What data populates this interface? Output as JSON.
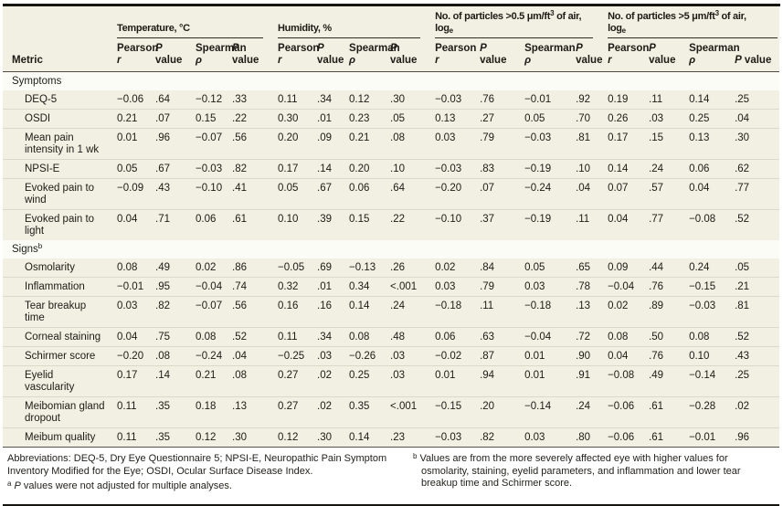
{
  "colors": {
    "table_background": "#f2f0e3",
    "section_background": "#fcfcf7",
    "separator": "#ddd9c9",
    "rule_color": "#17150f"
  },
  "header": {
    "metric_label": "Metric",
    "groups": [
      {
        "name": "temperature",
        "lines": [
          [
            {
              "t": "Temperature, °C"
            }
          ]
        ]
      },
      {
        "name": "humidity",
        "lines": [
          [
            {
              "t": "Humidity, %"
            }
          ]
        ]
      },
      {
        "name": "particles-0-5",
        "lines": [
          [
            {
              "t": "No. of particles >0.5 μm/ft"
            },
            {
              "t": "3",
              "sup": 1
            },
            {
              "t": " of air,"
            }
          ],
          [
            {
              "t": "log"
            },
            {
              "t": "e",
              "sub": 1
            }
          ]
        ]
      },
      {
        "name": "particles-5",
        "lines": [
          [
            {
              "t": "No. of particles >5 μm/ft"
            },
            {
              "t": "3",
              "sup": 1
            },
            {
              "t": " of air,"
            }
          ],
          [
            {
              "t": "log"
            },
            {
              "t": "e",
              "sub": 1
            }
          ]
        ]
      }
    ],
    "subcolumns": [
      [
        {
          "top": [
            {
              "t": "Pearson"
            }
          ],
          "bottom": [
            {
              "t": "r",
              "i": 1
            }
          ]
        },
        {
          "top": [
            {
              "t": "P",
              "i": 1
            }
          ],
          "bottom": [
            {
              "t": "value"
            }
          ]
        },
        {
          "top": [
            {
              "t": "Spearman"
            }
          ],
          "bottom": [
            {
              "t": "ρ",
              "i": 1
            }
          ]
        },
        {
          "top": [
            {
              "t": "P",
              "i": 1
            }
          ],
          "bottom": [
            {
              "t": "value"
            }
          ]
        }
      ],
      [
        {
          "top": [
            {
              "t": "Pearson"
            }
          ],
          "bottom": [
            {
              "t": "r",
              "i": 1
            }
          ]
        },
        {
          "top": [
            {
              "t": "P",
              "i": 1
            }
          ],
          "bottom": [
            {
              "t": "value"
            }
          ]
        },
        {
          "top": [
            {
              "t": "Spearman"
            }
          ],
          "bottom": [
            {
              "t": "ρ",
              "i": 1
            }
          ]
        },
        {
          "top": [
            {
              "t": "P",
              "i": 1
            }
          ],
          "bottom": [
            {
              "t": "value"
            }
          ]
        }
      ],
      [
        {
          "top": [
            {
              "t": "Pearson"
            }
          ],
          "bottom": [
            {
              "t": "r",
              "i": 1
            }
          ]
        },
        {
          "top": [
            {
              "t": "P",
              "i": 1
            }
          ],
          "bottom": [
            {
              "t": "value"
            }
          ]
        },
        {
          "top": [
            {
              "t": "Spearman"
            }
          ],
          "bottom": [
            {
              "t": "ρ",
              "i": 1
            }
          ]
        },
        {
          "top": [
            {
              "t": "P",
              "i": 1
            }
          ],
          "bottom": [
            {
              "t": "value"
            }
          ]
        }
      ],
      [
        {
          "top": [
            {
              "t": "Pearson"
            }
          ],
          "bottom": [
            {
              "t": "r",
              "i": 1
            }
          ]
        },
        {
          "top": [
            {
              "t": "P",
              "i": 1
            }
          ],
          "bottom": [
            {
              "t": "value"
            }
          ]
        },
        {
          "top": [
            {
              "t": "Spearman"
            }
          ],
          "bottom": [
            {
              "t": "ρ",
              "i": 1
            }
          ]
        },
        {
          "top": [],
          "bottom": [
            {
              "t": "P",
              "i": 1
            },
            {
              "t": " value"
            }
          ]
        }
      ]
    ]
  },
  "table": {
    "sections": [
      {
        "label": "Symptoms",
        "marker": "",
        "rows": [
          {
            "metric": "DEQ-5",
            "values": [
              "−0.06",
              ".64",
              "−0.12",
              ".33",
              "0.11",
              ".34",
              "0.12",
              ".30",
              "−0.03",
              ".76",
              "−0.01",
              ".92",
              "0.19",
              ".11",
              "0.14",
              ".25"
            ]
          },
          {
            "metric": "OSDI",
            "values": [
              "0.21",
              ".07",
              "0.15",
              ".22",
              "0.30",
              ".01",
              "0.23",
              ".05",
              "0.13",
              ".27",
              "0.05",
              ".70",
              "0.26",
              ".03",
              "0.25",
              ".04"
            ]
          },
          {
            "metric": "Mean pain intensity in 1 wk",
            "values": [
              "0.01",
              ".96",
              "−0.07",
              ".56",
              "0.20",
              ".09",
              "0.21",
              ".08",
              "0.03",
              ".79",
              "−0.03",
              ".81",
              "0.17",
              ".15",
              "0.13",
              ".30"
            ]
          },
          {
            "metric": "NPSI-E",
            "values": [
              "0.05",
              ".67",
              "−0.03",
              ".82",
              "0.17",
              ".14",
              "0.20",
              ".10",
              "−0.03",
              ".83",
              "−0.19",
              ".10",
              "0.14",
              ".24",
              "0.06",
              ".62"
            ]
          },
          {
            "metric": "Evoked pain to wind",
            "values": [
              "−0.09",
              ".43",
              "−0.10",
              ".41",
              "0.05",
              ".67",
              "0.06",
              ".64",
              "−0.20",
              ".07",
              "−0.24",
              ".04",
              "0.07",
              ".57",
              "0.04",
              ".77"
            ]
          },
          {
            "metric": "Evoked pain to light",
            "values": [
              "0.04",
              ".71",
              "0.06",
              ".61",
              "0.10",
              ".39",
              "0.15",
              ".22",
              "−0.10",
              ".37",
              "−0.19",
              ".11",
              "0.04",
              ".77",
              "−0.08",
              ".52"
            ]
          }
        ]
      },
      {
        "label": "Signs",
        "marker": "b",
        "rows": [
          {
            "metric": "Osmolarity",
            "values": [
              "0.08",
              ".49",
              "0.02",
              ".86",
              "−0.05",
              ".69",
              "−0.13",
              ".26",
              "0.02",
              ".84",
              "0.05",
              ".65",
              "0.09",
              ".44",
              "0.24",
              ".05"
            ]
          },
          {
            "metric": "Inflammation",
            "values": [
              "−0.01",
              ".95",
              "−0.04",
              ".74",
              "0.32",
              ".01",
              "0.34",
              "<.001",
              "0.03",
              ".79",
              "0.03",
              ".78",
              "−0.04",
              ".76",
              "−0.15",
              ".21"
            ]
          },
          {
            "metric": "Tear breakup time",
            "values": [
              "0.03",
              ".82",
              "−0.07",
              ".56",
              "0.16",
              ".16",
              "0.14",
              ".24",
              "−0.18",
              ".11",
              "−0.18",
              ".13",
              "0.02",
              ".89",
              "−0.03",
              ".81"
            ]
          },
          {
            "metric": "Corneal staining",
            "values": [
              "0.04",
              ".75",
              "0.08",
              ".52",
              "0.11",
              ".34",
              "0.08",
              ".48",
              "0.06",
              ".63",
              "−0.04",
              ".72",
              "0.08",
              ".50",
              "0.08",
              ".52"
            ]
          },
          {
            "metric": "Schirmer score",
            "values": [
              "−0.20",
              ".08",
              "−0.24",
              ".04",
              "−0.25",
              ".03",
              "−0.26",
              ".03",
              "−0.02",
              ".87",
              "0.01",
              ".90",
              "0.04",
              ".76",
              "0.10",
              ".43"
            ]
          },
          {
            "metric": "Eyelid vascularity",
            "values": [
              "0.17",
              ".14",
              "0.21",
              ".08",
              "0.27",
              ".02",
              "0.25",
              ".03",
              "0.01",
              ".94",
              "0.01",
              ".91",
              "−0.08",
              ".49",
              "−0.14",
              ".25"
            ]
          },
          {
            "metric": "Meibomian gland dropout",
            "values": [
              "0.11",
              ".35",
              "0.18",
              ".13",
              "0.27",
              ".02",
              "0.35",
              "<.001",
              "−0.15",
              ".20",
              "−0.14",
              ".24",
              "−0.06",
              ".61",
              "−0.28",
              ".02"
            ]
          },
          {
            "metric": "Meibum quality",
            "values": [
              "0.11",
              ".35",
              "0.12",
              ".30",
              "0.12",
              ".30",
              "0.14",
              ".23",
              "−0.03",
              ".82",
              "0.03",
              ".80",
              "−0.06",
              ".61",
              "−0.01",
              ".96"
            ]
          }
        ]
      }
    ]
  },
  "footnotes": {
    "left": [
      {
        "hanging": false,
        "segments": [
          {
            "t": "Abbreviations: DEQ-5, Dry Eye Questionnaire 5; NPSI-E, Neuropathic Pain Symptom Inventory Modified for the Eye; OSDI, Ocular Surface Disease Index."
          }
        ]
      },
      {
        "hanging": true,
        "segments": [
          {
            "t": "a",
            "sup": 1
          },
          {
            "t": " "
          },
          {
            "t": "P",
            "i": 1
          },
          {
            "t": " values were not adjusted for multiple analyses."
          }
        ]
      }
    ],
    "right": [
      {
        "hanging": true,
        "segments": [
          {
            "t": "b",
            "sup": 1
          },
          {
            "t": " Values are from the more severely affected eye with higher values for osmolarity, staining, eyelid parameters, and inflammation and lower tear breakup time and Schirmer score."
          }
        ]
      }
    ]
  }
}
